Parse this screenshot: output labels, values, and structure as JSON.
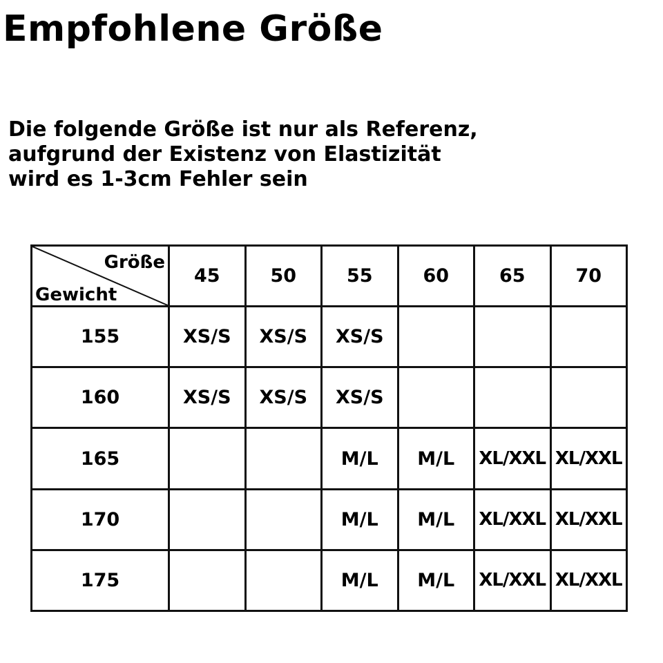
{
  "title": "Empfohlene Größe",
  "subtitle": [
    "Die folgende Größe ist nur als Referenz,",
    "aufgrund der Existenz von Elastizität",
    "wird es 1-3cm Fehler sein"
  ],
  "table": {
    "corner_size_label": "Größe",
    "corner_weight_label": "Gewicht",
    "columns": [
      "45",
      "50",
      "55",
      "60",
      "65",
      "70"
    ],
    "rows": [
      {
        "weight": "155",
        "cells": [
          "XS/S",
          "XS/S",
          "XS/S",
          "",
          "",
          ""
        ]
      },
      {
        "weight": "160",
        "cells": [
          "XS/S",
          "XS/S",
          "XS/S",
          "",
          "",
          ""
        ]
      },
      {
        "weight": "165",
        "cells": [
          "",
          "",
          "M/L",
          "M/L",
          "XL/XXL",
          "XL/XXL"
        ]
      },
      {
        "weight": "170",
        "cells": [
          "",
          "",
          "M/L",
          "M/L",
          "XL/XXL",
          "XL/XXL"
        ]
      },
      {
        "weight": "175",
        "cells": [
          "",
          "",
          "M/L",
          "M/L",
          "XL/XXL",
          "XL/XXL"
        ]
      }
    ]
  }
}
